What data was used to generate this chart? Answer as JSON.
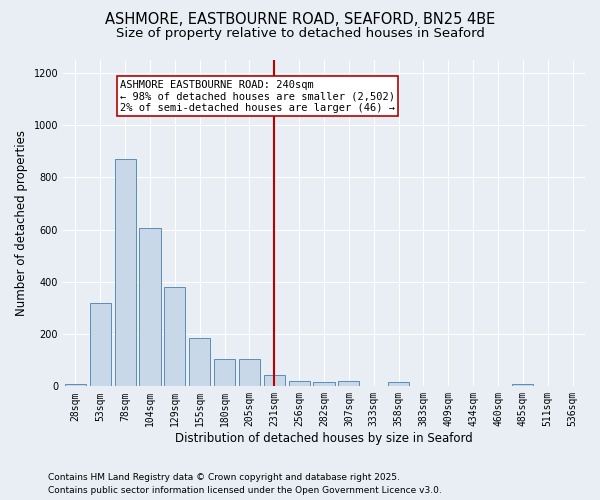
{
  "title1": "ASHMORE, EASTBOURNE ROAD, SEAFORD, BN25 4BE",
  "title2": "Size of property relative to detached houses in Seaford",
  "xlabel": "Distribution of detached houses by size in Seaford",
  "ylabel": "Number of detached properties",
  "categories": [
    "28sqm",
    "53sqm",
    "78sqm",
    "104sqm",
    "129sqm",
    "155sqm",
    "180sqm",
    "205sqm",
    "231sqm",
    "256sqm",
    "282sqm",
    "307sqm",
    "333sqm",
    "358sqm",
    "383sqm",
    "409sqm",
    "434sqm",
    "460sqm",
    "485sqm",
    "511sqm",
    "536sqm"
  ],
  "values": [
    10,
    320,
    870,
    605,
    380,
    185,
    105,
    105,
    45,
    20,
    15,
    20,
    0,
    15,
    0,
    0,
    0,
    0,
    10,
    0,
    0
  ],
  "bar_color": "#c8d8e8",
  "bar_edge_color": "#5b8db8",
  "vline_x_index": 8,
  "vline_color": "#bb0000",
  "annotation_text": "ASHMORE EASTBOURNE ROAD: 240sqm\n← 98% of detached houses are smaller (2,502)\n2% of semi-detached houses are larger (46) →",
  "annotation_box_color": "#ffffff",
  "annotation_box_edge": "#bb0000",
  "ylim": [
    0,
    1250
  ],
  "yticks": [
    0,
    200,
    400,
    600,
    800,
    1000,
    1200
  ],
  "background_color": "#e8eef4",
  "footer1": "Contains HM Land Registry data © Crown copyright and database right 2025.",
  "footer2": "Contains public sector information licensed under the Open Government Licence v3.0.",
  "title1_fontsize": 10.5,
  "title2_fontsize": 9.5,
  "axis_label_fontsize": 8.5,
  "tick_fontsize": 7,
  "annotation_fontsize": 7.5,
  "footer_fontsize": 6.5
}
